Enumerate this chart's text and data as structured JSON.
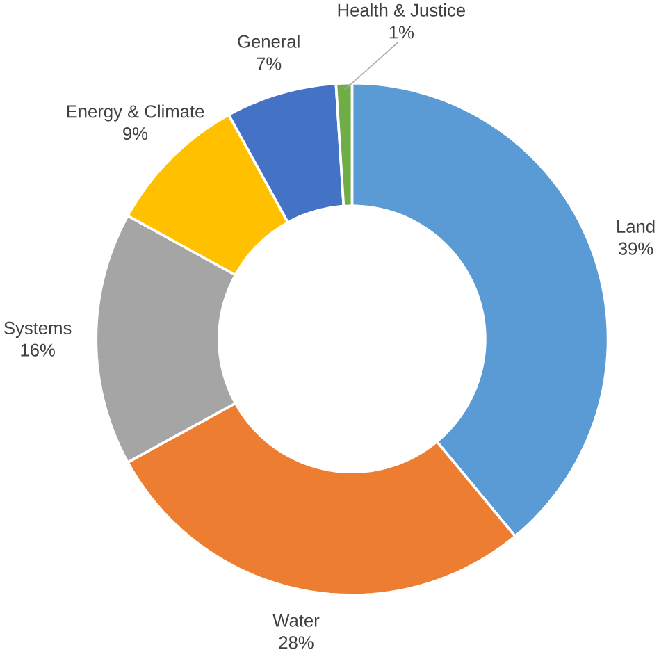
{
  "chart_data": {
    "type": "donut",
    "categories": [
      "Land",
      "Water",
      "Systems",
      "Energy & Climate",
      "General",
      "Health & Justice"
    ],
    "values": [
      39,
      28,
      16,
      9,
      7,
      1
    ],
    "value_labels": [
      "39%",
      "28%",
      "16%",
      "9%",
      "7%",
      "1%"
    ],
    "colors": [
      "#5b9bd5",
      "#ed7d31",
      "#a5a5a5",
      "#ffc000",
      "#4472c4",
      "#70ad47"
    ]
  }
}
